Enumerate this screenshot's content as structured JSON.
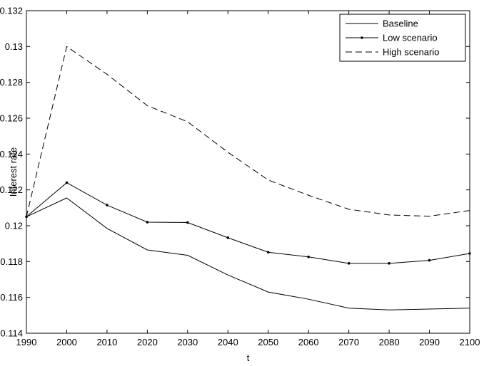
{
  "chart_data": {
    "type": "line",
    "title": "",
    "xlabel": "t",
    "ylabel": "Interest rate",
    "xlim": [
      1990,
      2100
    ],
    "ylim": [
      0.114,
      0.132
    ],
    "x_ticks": [
      "1990",
      "2000",
      "2010",
      "2020",
      "2030",
      "2040",
      "2050",
      "2060",
      "2070",
      "2080",
      "2090",
      "2100"
    ],
    "y_ticks": [
      "0.114",
      "0.116",
      "0.118",
      "0.12",
      "0.122",
      "0.124",
      "0.126",
      "0.128",
      "0.13",
      "0.132"
    ],
    "grid": false,
    "legend_position": "top-right",
    "x": [
      1990,
      2000,
      2010,
      2020,
      2030,
      2040,
      2050,
      2060,
      2070,
      2080,
      2090,
      2100
    ],
    "series": [
      {
        "name": "Baseline",
        "style": "solid",
        "markers": false,
        "values": [
          0.1205,
          0.12155,
          0.11985,
          0.11865,
          0.11835,
          0.11725,
          0.1163,
          0.1159,
          0.1154,
          0.1153,
          0.11535,
          0.1154
        ]
      },
      {
        "name": "Low scenario",
        "style": "solid",
        "markers": true,
        "values": [
          0.1205,
          0.1224,
          0.12115,
          0.1202,
          0.12018,
          0.11933,
          0.11852,
          0.11826,
          0.1179,
          0.1179,
          0.11807,
          0.11845
        ]
      },
      {
        "name": "High scenario",
        "style": "dashed",
        "markers": false,
        "values": [
          0.1205,
          0.13,
          0.12845,
          0.1267,
          0.1258,
          0.1241,
          0.12255,
          0.1217,
          0.12092,
          0.1206,
          0.12053,
          0.12085
        ]
      }
    ]
  }
}
